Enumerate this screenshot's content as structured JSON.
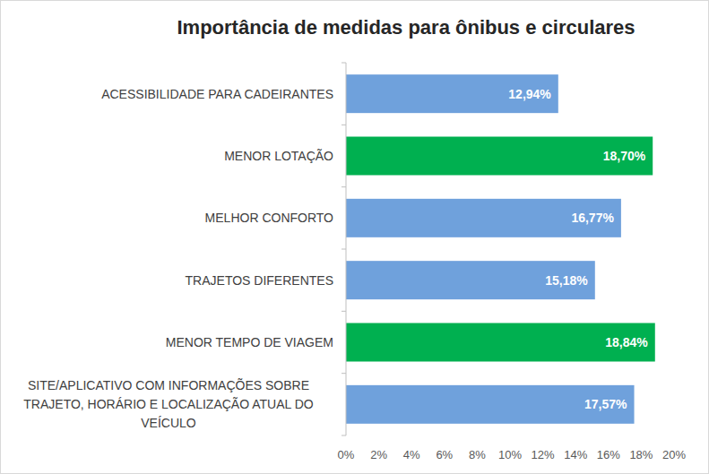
{
  "chart_data": {
    "type": "bar",
    "orientation": "horizontal",
    "title": "Importância de medidas para ônibus e circulares",
    "categories": [
      "ACESSIBILIDADE PARA CADEIRANTES",
      "MENOR LOTAÇÃO",
      "MELHOR CONFORTO",
      "TRAJETOS DIFERENTES",
      "MENOR TEMPO DE VIAGEM",
      "SITE/APLICATIVO COM INFORMAÇÕES SOBRE TRAJETO, HORÁRIO E LOCALIZAÇÃO ATUAL DO VEÍCULO"
    ],
    "values": [
      12.94,
      18.7,
      16.77,
      15.18,
      18.84,
      17.57
    ],
    "value_labels": [
      "12,94%",
      "18,70%",
      "16,77%",
      "15,18%",
      "18,84%",
      "17,57%"
    ],
    "colors": [
      "#6fa1dc",
      "#00b050",
      "#6fa1dc",
      "#6fa1dc",
      "#00b050",
      "#6fa1dc"
    ],
    "xlim": [
      0,
      20
    ],
    "xticks": [
      {
        "value": 0,
        "label": "0%"
      },
      {
        "value": 2,
        "label": "2%"
      },
      {
        "value": 4,
        "label": "4%"
      },
      {
        "value": 6,
        "label": "6%"
      },
      {
        "value": 8,
        "label": "8%"
      },
      {
        "value": 10,
        "label": "10%"
      },
      {
        "value": 12,
        "label": "12%"
      },
      {
        "value": 14,
        "label": "14%"
      },
      {
        "value": 16,
        "label": "16%"
      },
      {
        "value": 18,
        "label": "18%"
      },
      {
        "value": 20,
        "label": "20%"
      }
    ],
    "grid": false,
    "data_labels": true
  }
}
